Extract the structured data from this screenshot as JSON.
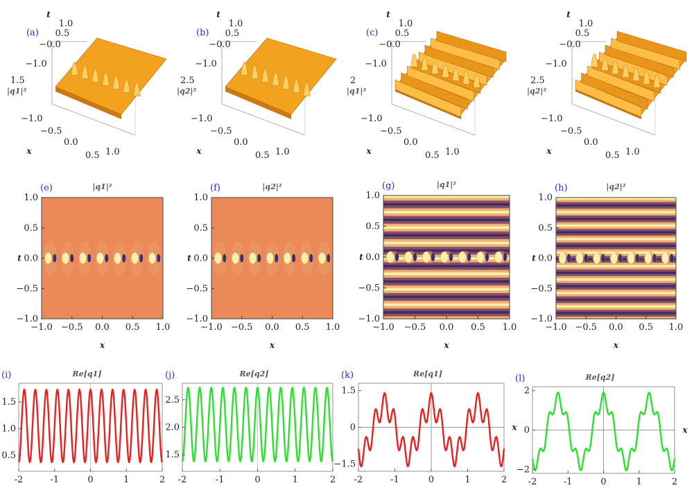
{
  "chart_data": [
    {
      "id": "a",
      "type": "surface3d",
      "label": "(a)",
      "zlabel": "|q1|²",
      "t_ticks": [
        "1.0",
        "0.5",
        "−0.0",
        "−1.0"
      ],
      "x_ticks": [
        "−1.0",
        "−0.5",
        "0.0",
        "0.5",
        "1.0"
      ],
      "z_ticks": [
        "1.5"
      ],
      "xlabel": "x",
      "tlabel": "t",
      "baseline_z": 1.0,
      "peak_count": 7
    },
    {
      "id": "b",
      "type": "surface3d",
      "label": "(b)",
      "zlabel": "|q2|²",
      "t_ticks": [
        "1.0",
        "0.5",
        "−0.0",
        "−1.0"
      ],
      "x_ticks": [
        "−1.0",
        "−0.5",
        "0.0",
        "0.5",
        "1.0"
      ],
      "z_ticks": [
        "2.5"
      ],
      "xlabel": "x",
      "tlabel": "t",
      "baseline_z": 2.0,
      "peak_count": 7
    },
    {
      "id": "c",
      "type": "surface3d",
      "label": "(c)",
      "zlabel": "|q1|²",
      "t_ticks": [
        "1.0",
        "0.5",
        "−0.0",
        "−1.0"
      ],
      "x_ticks": [
        "−1.0",
        "−0.5",
        "0.0",
        "0.5",
        "1.0"
      ],
      "z_ticks": [
        "2"
      ],
      "xlabel": "x",
      "tlabel": "t",
      "ridge_count": 8
    },
    {
      "id": "d",
      "type": "surface3d",
      "label": "",
      "zlabel": "|q2|²",
      "t_ticks": [
        "1.0",
        "0.5",
        "−0.0",
        "−1.0"
      ],
      "x_ticks": [
        "−1.0",
        "−0.5",
        "0.0",
        "0.5",
        "1.0"
      ],
      "z_ticks": [
        "2.5"
      ],
      "xlabel": "x",
      "tlabel": "t",
      "ridge_count": 8
    },
    {
      "id": "e",
      "type": "heatmap",
      "label": "(e)",
      "title": "|q1|²",
      "xlabel": "x",
      "ylabel": "t",
      "x_ticks": [
        "−1.0",
        "−0.5",
        "0.0",
        "0.5",
        "1.0"
      ],
      "y_ticks": [
        "1.0",
        "0.5",
        "0.0",
        "−0.5",
        "−1.0"
      ],
      "xlim": [
        -1,
        1
      ],
      "ylim": [
        -1,
        1
      ],
      "background_bands": false,
      "peak_count": 7
    },
    {
      "id": "f",
      "type": "heatmap",
      "label": "(f)",
      "title": "|q2|²",
      "xlabel": "x",
      "ylabel": "t",
      "x_ticks": [
        "−1.0",
        "−0.5",
        "0.0",
        "0.5",
        "1.0"
      ],
      "y_ticks": [
        "1.0",
        "0.5",
        "0.0",
        "−0.5",
        "−1.0"
      ],
      "xlim": [
        -1,
        1
      ],
      "ylim": [
        -1,
        1
      ],
      "background_bands": false,
      "peak_count": 7
    },
    {
      "id": "g",
      "type": "heatmap",
      "label": "(g)",
      "title": "|q1|²",
      "xlabel": "x",
      "ylabel": "t",
      "x_ticks": [
        "−1.0",
        "−0.5",
        "0.0",
        "0.5",
        "1.0"
      ],
      "y_ticks": [
        "1.0",
        "0.5",
        "0.0",
        "−0.5",
        "−1.0"
      ],
      "xlim": [
        -1,
        1
      ],
      "ylim": [
        -1,
        1
      ],
      "background_bands": true,
      "band_count": 8,
      "peak_count": 7
    },
    {
      "id": "h",
      "type": "heatmap",
      "label": "(h)",
      "title": "|q2|²",
      "xlabel": "x",
      "ylabel": "t",
      "x_ticks": [
        "−1.0",
        "−0.5",
        "0.0",
        "0.5",
        "1.0"
      ],
      "y_ticks": [
        "1.0",
        "0.5",
        "0.0",
        "−0.5",
        "−1.0"
      ],
      "xlim": [
        -1,
        1
      ],
      "ylim": [
        -1,
        1
      ],
      "background_bands": true,
      "band_count": 9,
      "peak_count": 7
    },
    {
      "id": "i",
      "type": "line",
      "label": "(i)",
      "title": "Re[q1]",
      "color": "#e82020",
      "xlim": [
        -2,
        2
      ],
      "ylim": [
        0.2,
        1.85
      ],
      "x_ticks": [
        -2,
        -1,
        0,
        1,
        2
      ],
      "y_ticks": [
        0.5,
        1.0,
        1.5
      ],
      "y_tick_labels": [
        "0.5",
        "1.0",
        "1.5"
      ],
      "function": {
        "kind": "cos",
        "mean": 1.05,
        "amp": 0.68,
        "cycles": 13
      }
    },
    {
      "id": "j",
      "type": "line",
      "label": "(j)",
      "title": "Re[q2]",
      "color": "#2ee02e",
      "xlim": [
        -2,
        2
      ],
      "ylim": [
        1.2,
        2.8
      ],
      "x_ticks": [
        -2,
        -1,
        0,
        1,
        2
      ],
      "y_ticks": [
        1.5,
        2.0,
        2.5
      ],
      "y_tick_labels": [
        "1.5",
        "2.0",
        "2.5"
      ],
      "function": {
        "kind": "cos",
        "mean": 2.05,
        "amp": 0.67,
        "cycles": 13
      }
    },
    {
      "id": "k",
      "type": "line",
      "label": "(k)",
      "title": "Re[q1]",
      "color": "#e82020",
      "xlim": [
        -2,
        2
      ],
      "ylim": [
        -1.8,
        1.8
      ],
      "x_ticks": [
        -2,
        -1,
        0,
        1,
        2
      ],
      "y_ticks": [
        -1.5,
        0,
        1.5
      ],
      "y_tick_labels": [
        "−1.5",
        "0",
        "1.5"
      ],
      "axis_label": "x",
      "axes_at_origin": true,
      "function": {
        "kind": "two-tone",
        "a": 1.0,
        "f1": 0.78,
        "b": 0.5,
        "f2": 3.9
      }
    },
    {
      "id": "l",
      "type": "line",
      "label": "(l)",
      "title": "Re[q2]",
      "color": "#2ee02e",
      "xlim": [
        -2,
        2
      ],
      "ylim": [
        -2.2,
        2.2
      ],
      "x_ticks": [
        -2,
        -1,
        0,
        1,
        2
      ],
      "y_ticks": [
        -2,
        0,
        2
      ],
      "y_tick_labels": [
        "−2",
        "0",
        "2"
      ],
      "axis_label": "x",
      "axes_at_origin": true,
      "function": {
        "kind": "two-tone",
        "a": 1.6,
        "f1": 0.78,
        "b": 0.38,
        "f2": 3.9
      }
    }
  ]
}
